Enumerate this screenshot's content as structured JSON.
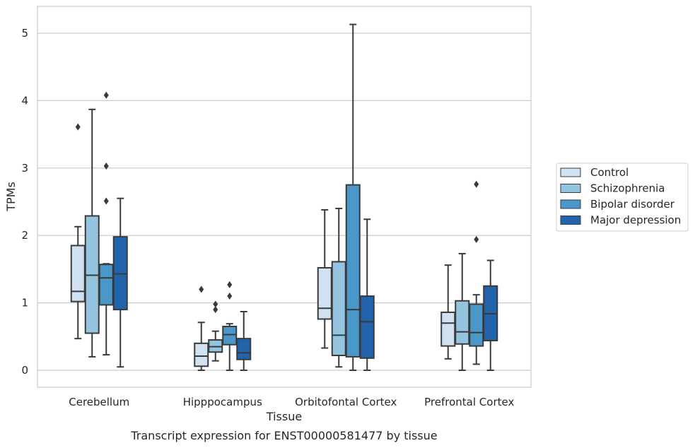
{
  "chart_data": {
    "type": "box",
    "xlabel": "Tissue",
    "ylabel": "TPMs",
    "caption": "Transcript expression for ENST00000581477 by tissue",
    "ylim": [
      -0.25,
      5.4
    ],
    "yticks": [
      0,
      1,
      2,
      3,
      4,
      5
    ],
    "grid": "horizontal",
    "legend_position": "right",
    "categories": [
      "Cerebellum",
      "Hipppocampus",
      "Orbitofontal Cortex",
      "Prefrontal Cortex"
    ],
    "series": [
      {
        "name": "Control",
        "color": "#d0e1f2",
        "boxes": [
          {
            "whislo": 0.47,
            "q1": 1.02,
            "med": 1.17,
            "q3": 1.85,
            "whishi": 2.13,
            "fliers": [
              3.61
            ]
          },
          {
            "whislo": 0.0,
            "q1": 0.06,
            "med": 0.21,
            "q3": 0.4,
            "whishi": 0.71,
            "fliers": [
              1.2
            ]
          },
          {
            "whislo": 0.33,
            "q1": 0.76,
            "med": 0.92,
            "q3": 1.52,
            "whishi": 2.38,
            "fliers": []
          },
          {
            "whislo": 0.17,
            "q1": 0.36,
            "med": 0.7,
            "q3": 0.86,
            "whishi": 1.56,
            "fliers": []
          }
        ]
      },
      {
        "name": "Schizophrenia",
        "color": "#94c4df",
        "boxes": [
          {
            "whislo": 0.2,
            "q1": 0.55,
            "med": 1.41,
            "q3": 2.29,
            "whishi": 3.87,
            "fliers": []
          },
          {
            "whislo": 0.14,
            "q1": 0.27,
            "med": 0.35,
            "q3": 0.45,
            "whishi": 0.58,
            "fliers": [
              0.9,
              0.98
            ]
          },
          {
            "whislo": 0.05,
            "q1": 0.22,
            "med": 0.52,
            "q3": 1.61,
            "whishi": 2.4,
            "fliers": []
          },
          {
            "whislo": 0.0,
            "q1": 0.39,
            "med": 0.57,
            "q3": 1.03,
            "whishi": 1.73,
            "fliers": []
          }
        ]
      },
      {
        "name": "Bipolar disorder",
        "color": "#4a98c9",
        "boxes": [
          {
            "whislo": 0.23,
            "q1": 0.97,
            "med": 1.37,
            "q3": 1.57,
            "whishi": 1.58,
            "fliers": [
              2.51,
              3.03,
              4.08
            ]
          },
          {
            "whislo": 0.0,
            "q1": 0.38,
            "med": 0.53,
            "q3": 0.65,
            "whishi": 0.69,
            "fliers": [
              1.1,
              1.27
            ]
          },
          {
            "whislo": 0.0,
            "q1": 0.2,
            "med": 0.9,
            "q3": 2.75,
            "whishi": 5.13,
            "fliers": []
          },
          {
            "whislo": 0.09,
            "q1": 0.36,
            "med": 0.56,
            "q3": 0.98,
            "whishi": 1.12,
            "fliers": [
              1.94,
              2.76
            ]
          }
        ]
      },
      {
        "name": "Major depression",
        "color": "#2164ab",
        "boxes": [
          {
            "whislo": 0.05,
            "q1": 0.9,
            "med": 1.43,
            "q3": 1.98,
            "whishi": 2.55,
            "fliers": []
          },
          {
            "whislo": 0.0,
            "q1": 0.16,
            "med": 0.26,
            "q3": 0.47,
            "whishi": 0.87,
            "fliers": []
          },
          {
            "whislo": 0.0,
            "q1": 0.18,
            "med": 0.72,
            "q3": 1.1,
            "whishi": 2.24,
            "fliers": []
          },
          {
            "whislo": 0.0,
            "q1": 0.44,
            "med": 0.84,
            "q3": 1.25,
            "whishi": 1.63,
            "fliers": []
          }
        ]
      }
    ]
  }
}
